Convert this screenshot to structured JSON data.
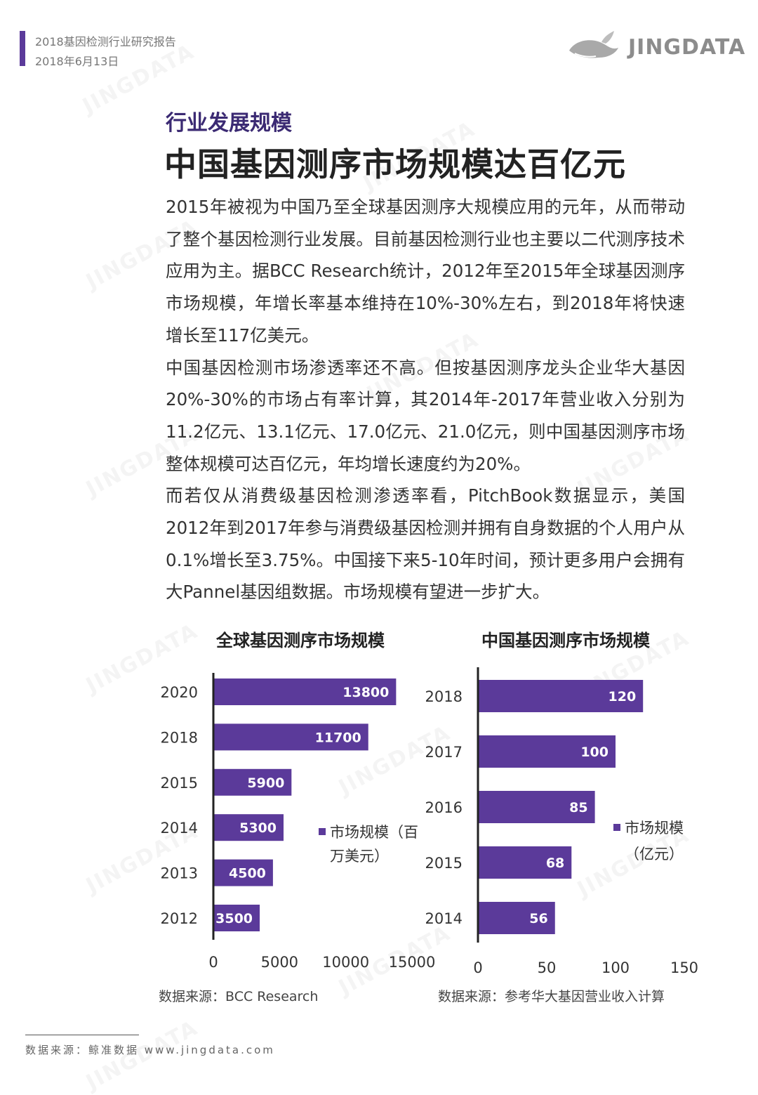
{
  "header": {
    "doc_title": "2018基因检测行业研究报告",
    "date": "2018年6月13日",
    "logo_text": "JINGDATA",
    "logo_icon": "whale-icon"
  },
  "section_label": "行业发展规模",
  "main_title": "中国基因测序市场规模达百亿元",
  "paragraphs": [
    "2015年被视为中国乃至全球基因测序大规模应用的元年，从而带动了整个基因检测行业发展。目前基因检测行业也主要以二代测序技术应用为主。据BCC Research统计，2012年至2015年全球基因测序市场规模，年增长率基本维持在10%-30%左右，到2018年将快速增长至117亿美元。",
    "中国基因检测市场渗透率还不高。但按基因测序龙头企业华大基因20%-30%的市场占有率计算，其2014年-2017年营业收入分别为11.2亿元、13.1亿元、17.0亿元、21.0亿元，则中国基因测序市场整体规模可达百亿元，年均增长速度约为20%。",
    "而若仅从消费级基因检测渗透率看，PitchBook数据显示，美国2012年到2017年参与消费级基因检测并拥有自身数据的个人用户从0.1%增长至3.75%。中国接下来5-10年时间，预计更多用户会拥有大Pannel基因组数据。市场规模有望进一步扩大。"
  ],
  "chart_data": [
    {
      "type": "bar",
      "orientation": "horizontal",
      "title": "全球基因测序市场规模",
      "categories": [
        "2020",
        "2018",
        "2015",
        "2014",
        "2013",
        "2012"
      ],
      "series": [
        {
          "name": "市场规模（百万美元）",
          "values": [
            13800,
            11700,
            5900,
            5300,
            4500,
            3500
          ]
        }
      ],
      "legend_lines": [
        "市场规模（百",
        "万美元）"
      ],
      "xlim": [
        0,
        15000
      ],
      "xticks": [
        0,
        5000,
        10000,
        15000
      ],
      "legend_position": "right",
      "bar_color": "#5b3a9a",
      "source": "数据来源：BCC Research"
    },
    {
      "type": "bar",
      "orientation": "horizontal",
      "title": "中国基因测序市场规模",
      "categories": [
        "2018",
        "2017",
        "2016",
        "2015",
        "2014"
      ],
      "series": [
        {
          "name": "市场规模（亿元）",
          "values": [
            120,
            100,
            85,
            68,
            56
          ]
        }
      ],
      "legend_lines": [
        "市场规模",
        "（亿元）"
      ],
      "xlim": [
        0,
        150
      ],
      "xticks": [
        0,
        50,
        100,
        150
      ],
      "legend_position": "right",
      "bar_color": "#5b3a9a",
      "source": "数据来源：参考华大基因营业收入计算"
    }
  ],
  "footer": "数据来源：鲸准数据 www.jingdata.com",
  "colors": {
    "accent": "#5b3a9a",
    "title_purple": "#3b2a73"
  }
}
